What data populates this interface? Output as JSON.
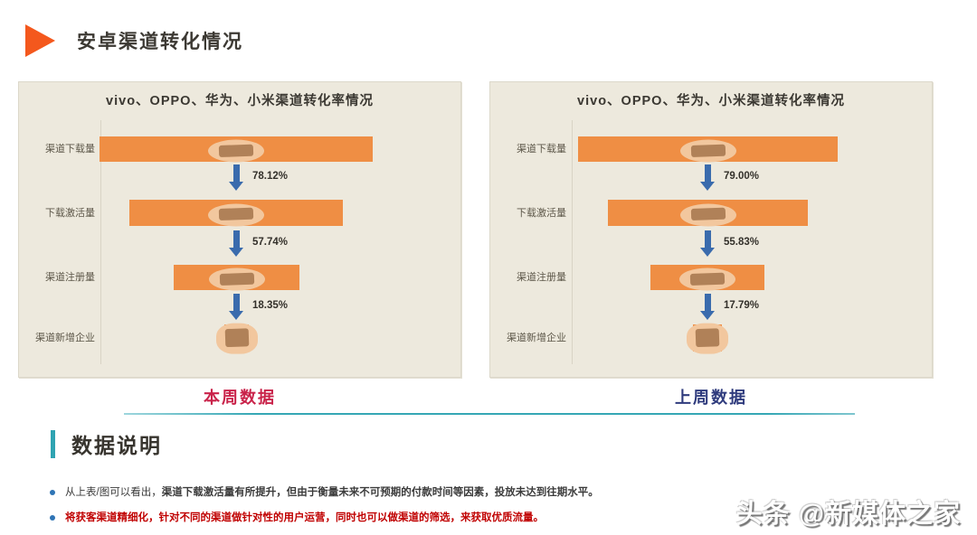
{
  "header": {
    "title": "安卓渠道转化情况"
  },
  "chart_data": [
    {
      "type": "funnel",
      "title": "vivo、OPPO、华为、小米渠道转化率情况",
      "caption": "本周数据",
      "caption_color": "#C9234A",
      "stages": [
        "渠道下载量",
        "下载激活量",
        "渠道注册量",
        "渠道新增企业"
      ],
      "conversions": [
        "78.12%",
        "57.74%",
        "18.35%"
      ],
      "bar_fractions": [
        1.0,
        0.78,
        0.46,
        0.09
      ],
      "values_redacted": true,
      "bar_color": "#EF8E44",
      "arrow_color": "#3A6BAD"
    },
    {
      "type": "funnel",
      "title": "vivo、OPPO、华为、小米渠道转化率情况",
      "caption": "上周数据",
      "caption_color": "#2F3B7D",
      "stages": [
        "渠道下载量",
        "下载激活量",
        "渠道注册量",
        "渠道新增企业"
      ],
      "conversions": [
        "79.00%",
        "55.83%",
        "17.79%"
      ],
      "bar_fractions": [
        1.0,
        0.77,
        0.44,
        0.11
      ],
      "values_redacted": true,
      "bar_color": "#EF8E44",
      "arrow_color": "#3A6BAD"
    }
  ],
  "section": {
    "heading": "数据说明",
    "accent_color": "#2FA3B2"
  },
  "notes": [
    {
      "prefix": "从上表/图可以看出，",
      "bold": "渠道下载激活量有所提升，但由于衡量未来不可预期的付款时间等因素，投放未达到往期水平。",
      "color": "#3B3B3B"
    },
    {
      "prefix": "",
      "bold": "将获客渠道精细化，针对不同的渠道做针对性的用户运营，同时也可以做渠道的筛选，来获取优质流量。",
      "color": "#C00000"
    }
  ],
  "watermark": {
    "text": "头条 @新媒体之家"
  }
}
